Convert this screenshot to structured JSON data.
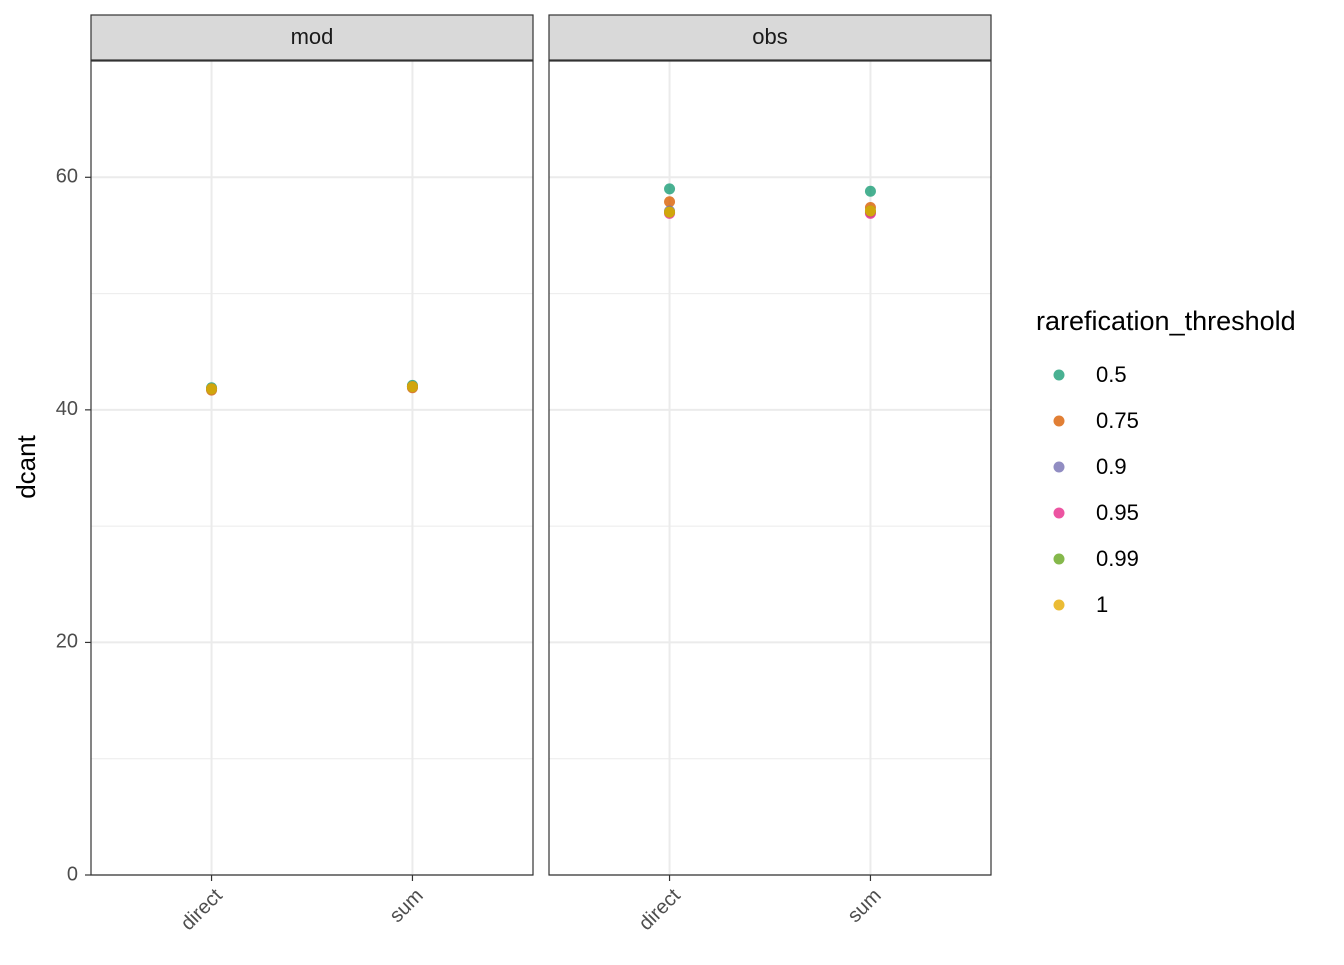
{
  "chart_data": {
    "type": "scatter",
    "y_label": "dcant",
    "legend_title": "rarefication_threshold",
    "facets": [
      "mod",
      "obs"
    ],
    "categories": [
      "direct",
      "sum"
    ],
    "ylim": [
      0,
      70
    ],
    "yticks": [
      0,
      20,
      40,
      60
    ],
    "minor_yticks": [
      10,
      30,
      50
    ],
    "grid": true,
    "series": [
      {
        "name": "0.5",
        "color": "#1B9E77",
        "values": [
          [
            41.9,
            42.1
          ],
          [
            59.0,
            58.8
          ]
        ]
      },
      {
        "name": "0.75",
        "color": "#D95F02",
        "values": [
          [
            41.7,
            41.9
          ],
          [
            57.9,
            57.4
          ]
        ]
      },
      {
        "name": "0.9",
        "color": "#7570B3",
        "values": [
          [
            41.8,
            42.0
          ],
          [
            57.1,
            57.0
          ]
        ]
      },
      {
        "name": "0.95",
        "color": "#E7298A",
        "values": [
          [
            41.8,
            42.0
          ],
          [
            56.9,
            56.9
          ]
        ]
      },
      {
        "name": "0.99",
        "color": "#66A61E",
        "values": [
          [
            41.8,
            42.0
          ],
          [
            57.0,
            57.1
          ]
        ]
      },
      {
        "name": "1",
        "color": "#E6AB02",
        "values": [
          [
            41.8,
            42.0
          ],
          [
            57.0,
            57.1
          ]
        ]
      }
    ]
  }
}
